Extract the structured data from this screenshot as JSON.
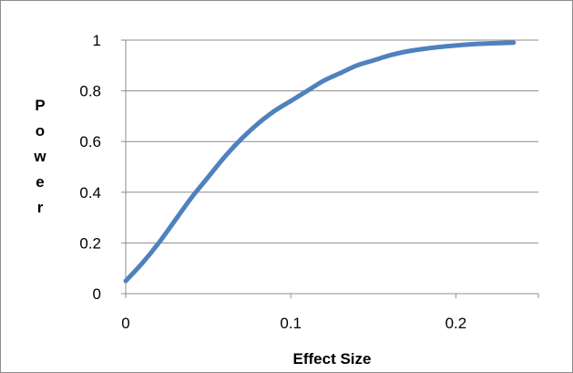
{
  "chart_data": {
    "type": "line",
    "xlabel": "Effect Size",
    "ylabel": "Power",
    "xlim": [
      0,
      0.25
    ],
    "ylim": [
      0,
      1
    ],
    "xticks": [
      0,
      0.1,
      0.2
    ],
    "xtick_labels": [
      "0",
      "0.1",
      "0.2"
    ],
    "yticks": [
      0,
      0.2,
      0.4,
      0.6,
      0.8,
      1
    ],
    "ytick_labels": [
      "0",
      "0.2",
      "0.4",
      "0.6",
      "0.8",
      "1"
    ],
    "grid": "horizontal",
    "legend": "none",
    "series": [
      {
        "color": "#4f81bd",
        "x": [
          0,
          0.01,
          0.02,
          0.03,
          0.04,
          0.05,
          0.06,
          0.07,
          0.08,
          0.09,
          0.1,
          0.11,
          0.12,
          0.13,
          0.14,
          0.15,
          0.16,
          0.17,
          0.18,
          0.19,
          0.2,
          0.21,
          0.22,
          0.235
        ],
        "y": [
          0.05,
          0.12,
          0.2,
          0.29,
          0.38,
          0.46,
          0.54,
          0.61,
          0.67,
          0.72,
          0.76,
          0.8,
          0.84,
          0.87,
          0.9,
          0.92,
          0.94,
          0.955,
          0.965,
          0.973,
          0.979,
          0.984,
          0.987,
          0.99
        ]
      }
    ]
  }
}
